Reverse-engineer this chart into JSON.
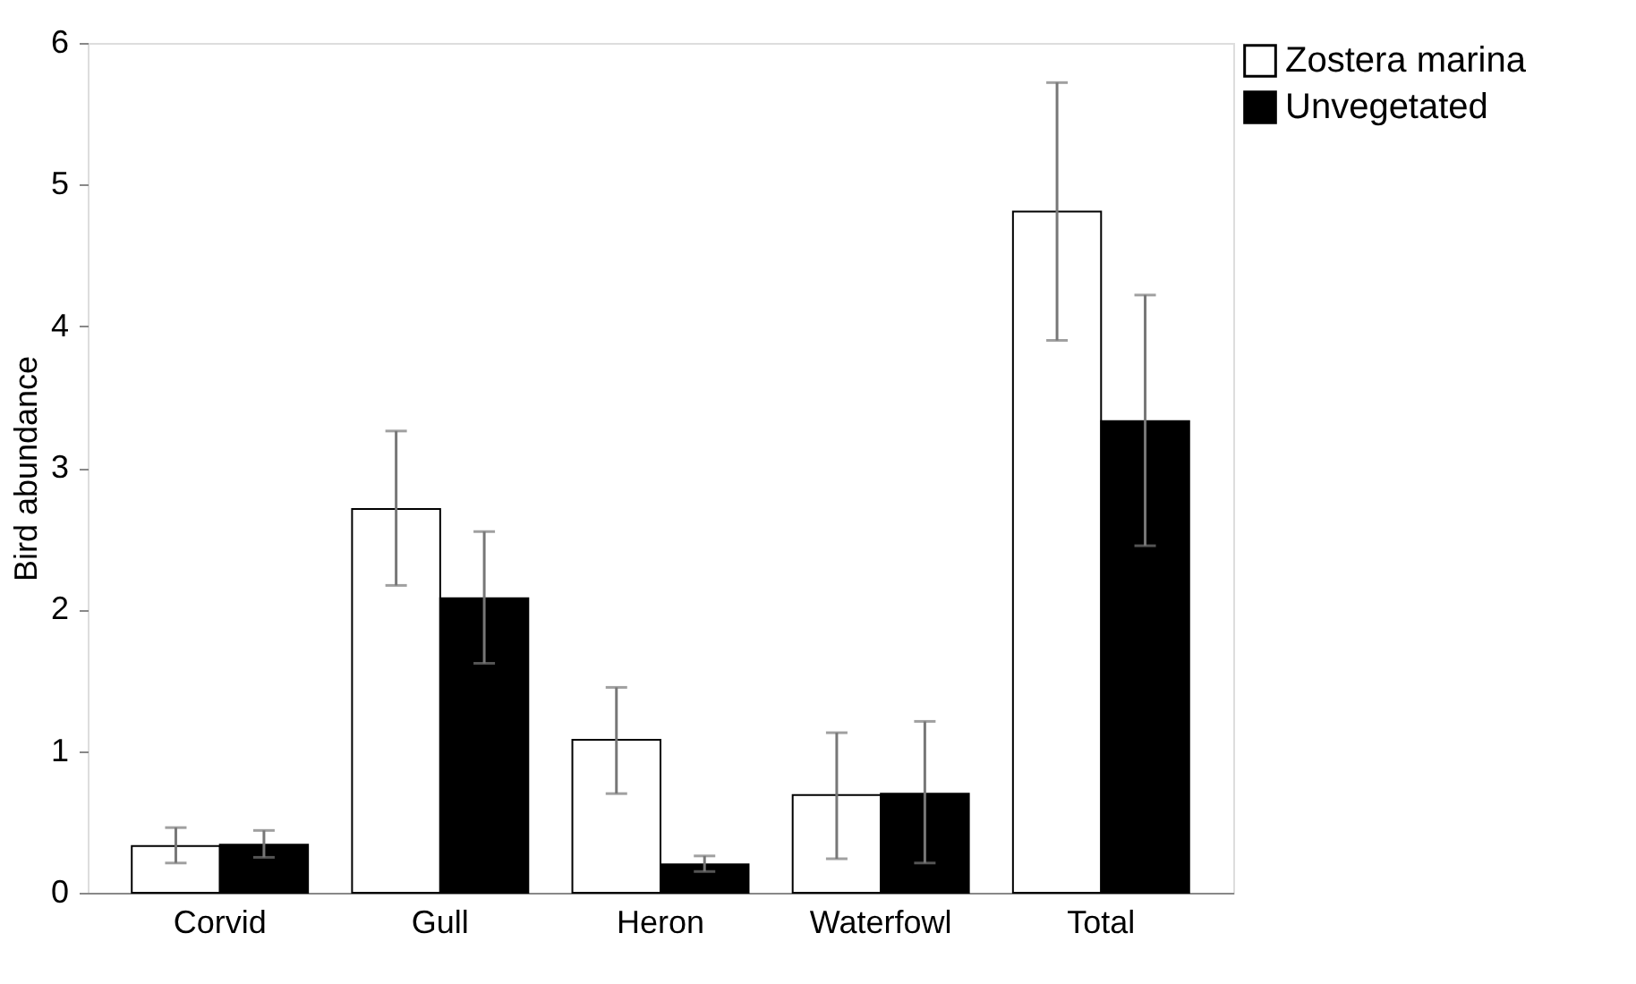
{
  "chart_data": {
    "type": "bar",
    "ylabel": "Bird abundance",
    "categories": [
      "Corvid",
      "Gull",
      "Heron",
      "Waterfowl",
      "Total"
    ],
    "series": [
      {
        "name": "Zostera marina",
        "color": "#ffffff",
        "values": [
          0.33,
          2.71,
          1.08,
          0.69,
          4.81
        ],
        "errors": [
          [
            0.21,
            0.46
          ],
          [
            2.17,
            3.26
          ],
          [
            0.7,
            1.45
          ],
          [
            0.24,
            1.13
          ],
          [
            3.9,
            5.72
          ]
        ]
      },
      {
        "name": "Unvegetated",
        "color": "#000000",
        "values": [
          0.34,
          2.08,
          0.2,
          0.7,
          3.33
        ],
        "errors": [
          [
            0.25,
            0.44
          ],
          [
            1.62,
            2.55
          ],
          [
            0.15,
            0.26
          ],
          [
            0.21,
            1.21
          ],
          [
            2.45,
            4.22
          ]
        ]
      }
    ],
    "ylim": [
      0,
      6
    ],
    "yticks": [
      0,
      1,
      2,
      3,
      4,
      5,
      6
    ],
    "grid": false,
    "legend": "top right"
  }
}
